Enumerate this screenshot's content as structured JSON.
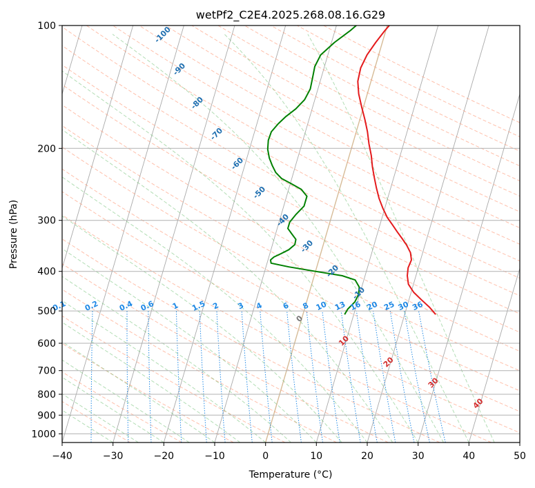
{
  "chart_data": {
    "type": "line",
    "title": "wetPf2_C2E4.2025.268.08.16.G29",
    "xlabel": "Temperature (°C)",
    "ylabel": "Pressure (hPa)",
    "xlim": [
      -40,
      50
    ],
    "ylim": [
      1050,
      100
    ],
    "y_scale": "log",
    "x_ticks": [
      -40,
      -30,
      -20,
      -10,
      0,
      10,
      20,
      30,
      40,
      50
    ],
    "x_tick_labels": [
      "−40",
      "−30",
      "−20",
      "−10",
      "0",
      "10",
      "20",
      "30",
      "40",
      "50"
    ],
    "y_ticks": [
      100,
      200,
      300,
      400,
      500,
      600,
      700,
      800,
      900,
      1000
    ],
    "y_tick_labels": [
      "100",
      "200",
      "300",
      "400",
      "500",
      "600",
      "700",
      "800",
      "900",
      "1000"
    ],
    "grid": true,
    "colors": {
      "temperature": "#e41a1c",
      "dewpoint": "#008000",
      "mixing_ratio": "#1e88e5",
      "dry_adiabat": "#ff8a65",
      "moist_adiabat": "#66bb6a",
      "isotherm": "#a0a0a0",
      "freezing_iso": "#d2b48c",
      "isotherm_label": "#d32f2f",
      "dewpoint_iso_label": "#1f6fb0"
    },
    "series": [
      {
        "key": "temperature",
        "points": [
          [
            26.1,
            510
          ],
          [
            24.5,
            490
          ],
          [
            22.5,
            470
          ],
          [
            20.5,
            450
          ],
          [
            19.0,
            430
          ],
          [
            18.3,
            410
          ],
          [
            18.0,
            392
          ],
          [
            18.2,
            375
          ],
          [
            17.6,
            360
          ],
          [
            16.4,
            345
          ],
          [
            15.2,
            333
          ],
          [
            13.8,
            320
          ],
          [
            12.5,
            308
          ],
          [
            11.0,
            295
          ],
          [
            9.6,
            280
          ],
          [
            8.3,
            265
          ],
          [
            7.2,
            250
          ],
          [
            6.2,
            236
          ],
          [
            5.2,
            222
          ],
          [
            4.3,
            208
          ],
          [
            3.2,
            195
          ],
          [
            2.2,
            182
          ],
          [
            1.0,
            170
          ],
          [
            -0.4,
            158
          ],
          [
            -1.7,
            147
          ],
          [
            -2.6,
            137
          ],
          [
            -2.8,
            127
          ],
          [
            -2.3,
            118
          ],
          [
            -1.3,
            110
          ],
          [
            -0.2,
            103
          ],
          [
            0.6,
            99
          ]
        ]
      },
      {
        "key": "dewpoint",
        "points": [
          [
            8.2,
            510
          ],
          [
            8.5,
            495
          ],
          [
            9.5,
            475
          ],
          [
            9.8,
            455
          ],
          [
            9.5,
            437
          ],
          [
            8.3,
            420
          ],
          [
            5.5,
            410
          ],
          [
            0.0,
            400
          ],
          [
            -5.5,
            390
          ],
          [
            -9.2,
            382
          ],
          [
            -9.5,
            375
          ],
          [
            -9.0,
            369
          ],
          [
            -7.8,
            362
          ],
          [
            -6.5,
            354
          ],
          [
            -5.6,
            344
          ],
          [
            -5.7,
            334
          ],
          [
            -6.8,
            324
          ],
          [
            -7.9,
            314
          ],
          [
            -7.9,
            303
          ],
          [
            -7.1,
            290
          ],
          [
            -6.0,
            277
          ],
          [
            -6.0,
            262
          ],
          [
            -7.5,
            252
          ],
          [
            -9.8,
            244
          ],
          [
            -12.0,
            237
          ],
          [
            -13.5,
            229
          ],
          [
            -14.6,
            220
          ],
          [
            -15.6,
            211
          ],
          [
            -16.4,
            201
          ],
          [
            -16.8,
            191
          ],
          [
            -16.7,
            182
          ],
          [
            -15.8,
            174
          ],
          [
            -14.7,
            167
          ],
          [
            -13.2,
            160
          ],
          [
            -12.0,
            152
          ],
          [
            -11.5,
            143
          ],
          [
            -11.7,
            134
          ],
          [
            -11.9,
            126
          ],
          [
            -11.4,
            118
          ],
          [
            -9.4,
            110
          ],
          [
            -7.0,
            103
          ],
          [
            -5.8,
            99
          ]
        ]
      }
    ],
    "isotherm_labels": [
      "0",
      "10",
      "20",
      "30",
      "40"
    ],
    "dewpoint_iso_labels": [
      "-100",
      "-90",
      "-80",
      "-70",
      "-60",
      "-50",
      "-40",
      "-30",
      "-20",
      "-10"
    ],
    "mixing_ratio_labels": [
      "0.1",
      "0.2",
      "0.4",
      "0.6",
      "1",
      "1.5",
      "2",
      "3",
      "4",
      "6",
      "8",
      "10",
      "13",
      "16",
      "20",
      "25",
      "30",
      "36"
    ]
  }
}
